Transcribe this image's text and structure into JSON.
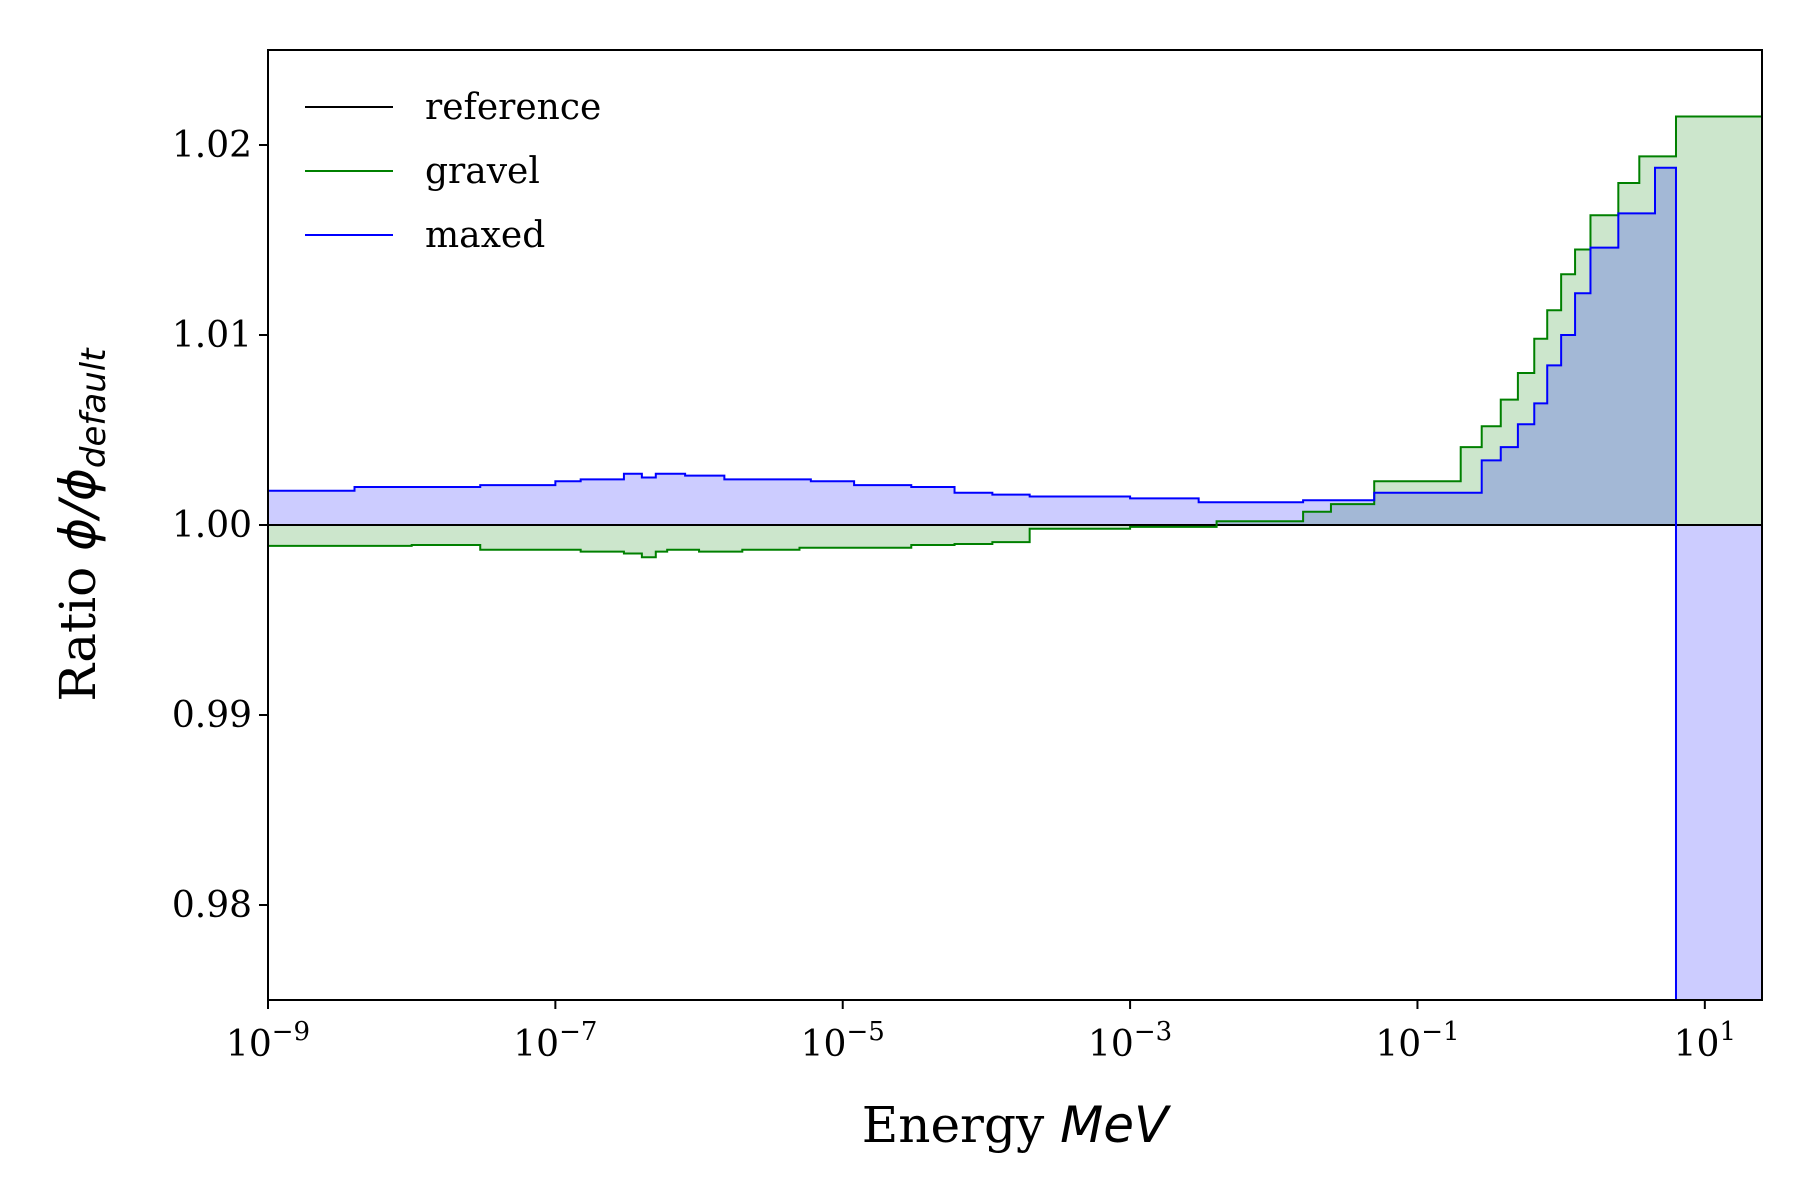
{
  "chart_data": {
    "type": "line",
    "drawstyle": "steps-post",
    "xscale": "log",
    "xlim": [
      1e-09,
      25
    ],
    "ylim": [
      0.975,
      1.025
    ],
    "xticks": [
      {
        "value": 1e-09,
        "base": "10",
        "exp": "−9"
      },
      {
        "value": 1e-07,
        "base": "10",
        "exp": "−7"
      },
      {
        "value": 1e-05,
        "base": "10",
        "exp": "−5"
      },
      {
        "value": 0.001,
        "base": "10",
        "exp": "−3"
      },
      {
        "value": 0.1,
        "base": "10",
        "exp": "−1"
      },
      {
        "value": 10,
        "base": "10",
        "exp": "1"
      }
    ],
    "yticks": [
      {
        "value": 0.98,
        "label": "0.98"
      },
      {
        "value": 0.99,
        "label": "0.99"
      },
      {
        "value": 1.0,
        "label": "1.00"
      },
      {
        "value": 1.01,
        "label": "1.01"
      },
      {
        "value": 1.02,
        "label": "1.02"
      }
    ],
    "xlabel": {
      "text": "Energy ",
      "math": "MeV"
    },
    "ylabel": {
      "text": "Ratio ",
      "math": "ϕ/ϕ",
      "sub": "default"
    },
    "legend": {
      "position": "upper-left"
    },
    "series": [
      {
        "name": "reference",
        "color": "#000000",
        "fill": false,
        "x": [
          1e-09,
          25
        ],
        "y": [
          1.0,
          1.0
        ]
      },
      {
        "name": "gravel",
        "color": "#008000",
        "fill": true,
        "fill_color": "rgba(0,128,0,0.2)",
        "x": [
          1e-09,
          1e-08,
          3e-08,
          1.5e-07,
          3e-07,
          4e-07,
          5e-07,
          6e-07,
          1e-06,
          2e-06,
          5e-06,
          1e-05,
          3e-05,
          6e-05,
          0.00011,
          0.0002,
          0.001,
          0.004,
          0.016,
          0.025,
          0.05,
          0.2,
          0.28,
          0.38,
          0.5,
          0.65,
          0.8,
          1.0,
          1.25,
          1.6,
          2.5,
          3.5,
          6.3
        ],
        "y": [
          0.9989,
          0.99895,
          0.9987,
          0.9986,
          0.9985,
          0.9983,
          0.9986,
          0.9987,
          0.9986,
          0.9987,
          0.9988,
          0.9988,
          0.99895,
          0.999,
          0.9991,
          0.9998,
          0.9999,
          1.0002,
          1.0007,
          1.0011,
          1.0023,
          1.0041,
          1.0052,
          1.0066,
          1.008,
          1.0098,
          1.0113,
          1.0132,
          1.0145,
          1.0163,
          1.018,
          1.0194,
          1.0215
        ]
      },
      {
        "name": "maxed",
        "color": "#0000ff",
        "fill": true,
        "fill_color": "rgba(0,0,255,0.2)",
        "x": [
          1e-09,
          4e-09,
          3e-08,
          1e-07,
          1.5e-07,
          3e-07,
          4e-07,
          5e-07,
          8e-07,
          1.5e-06,
          3e-06,
          6e-06,
          1.2e-05,
          3e-05,
          6e-05,
          0.00011,
          0.0002,
          0.001,
          0.003,
          0.016,
          0.05,
          0.2,
          0.28,
          0.38,
          0.5,
          0.65,
          0.8,
          1.0,
          1.25,
          1.6,
          2.5,
          4.5,
          6.3
        ],
        "y": [
          1.0018,
          1.002,
          1.0021,
          1.0023,
          1.0024,
          1.0027,
          1.0025,
          1.0027,
          1.0026,
          1.0024,
          1.0024,
          1.0023,
          1.0021,
          1.002,
          1.0017,
          1.0016,
          1.0015,
          1.0014,
          1.0012,
          1.0013,
          1.0017,
          1.0017,
          1.0034,
          1.0041,
          1.0053,
          1.0064,
          1.0084,
          1.01,
          1.0122,
          1.0146,
          1.0164,
          1.0188,
          0.97
        ]
      }
    ],
    "grid": false
  }
}
